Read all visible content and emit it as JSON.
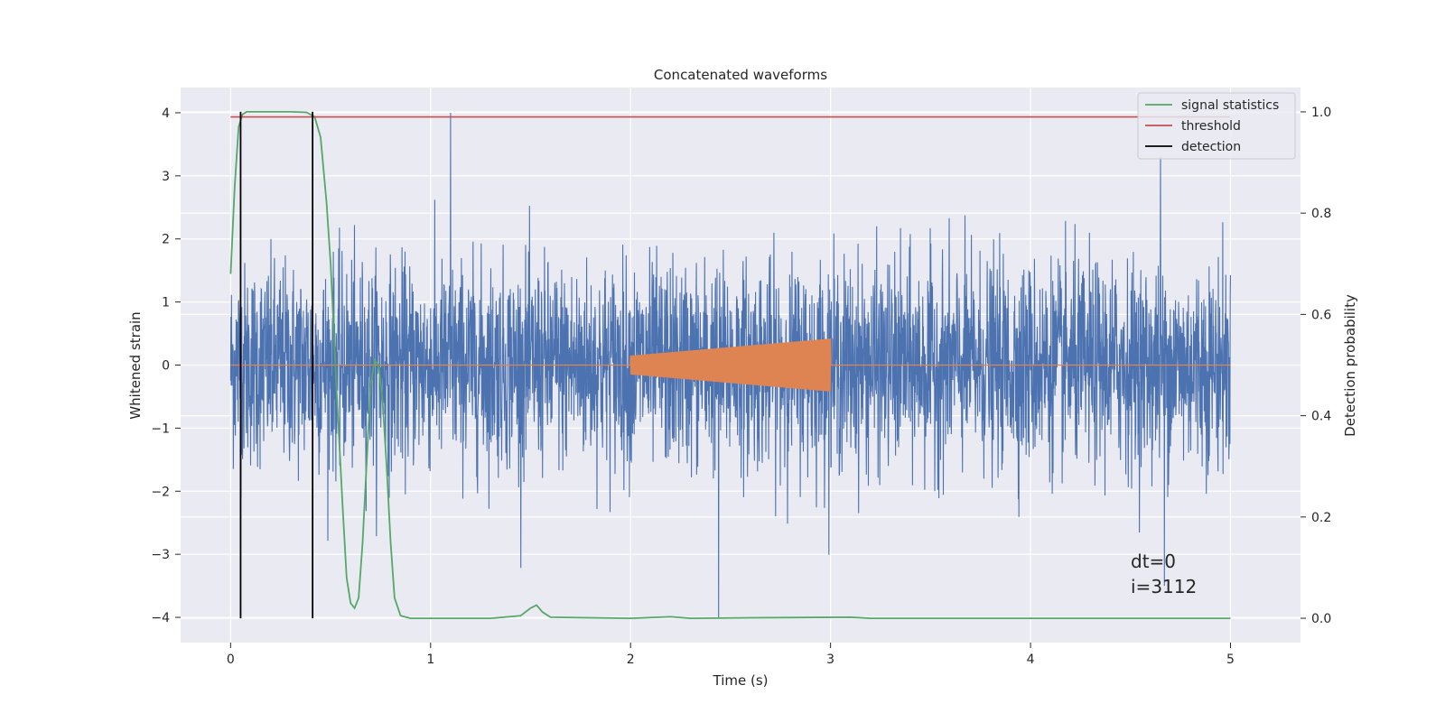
{
  "chart_data": {
    "type": "line",
    "title": "Concatenated waveforms",
    "xlabel": "Time (s)",
    "ylabel": "Whitened strain",
    "y2label": "Detection probability",
    "xlim": [
      -0.25,
      5.35
    ],
    "ylim": [
      -4.4,
      4.4
    ],
    "y2lim": [
      -0.048,
      1.048
    ],
    "xticks": [
      0,
      1,
      2,
      3,
      4,
      5
    ],
    "yticks": [
      -4,
      -3,
      -2,
      -1,
      0,
      1,
      2,
      3,
      4
    ],
    "y2ticks": [
      0.0,
      0.2,
      0.4,
      0.6,
      0.8,
      1.0
    ],
    "xtick_labels": [
      "0",
      "1",
      "2",
      "3",
      "4",
      "5"
    ],
    "ytick_labels": [
      "−4",
      "−3",
      "−2",
      "−1",
      "0",
      "1",
      "2",
      "3",
      "4"
    ],
    "y2tick_labels": [
      "0.0",
      "0.2",
      "0.4",
      "0.6",
      "0.8",
      "1.0"
    ],
    "grid": true,
    "legend_position": "top-right",
    "legend": [
      {
        "name": "signal statistics",
        "color": "#55a868"
      },
      {
        "name": "threshold",
        "color": "#c44e52"
      },
      {
        "name": "detection",
        "color": "#000000"
      }
    ],
    "series": [
      {
        "role": "strain",
        "axis": "left",
        "color": "#4c72b0",
        "x_range": [
          0,
          5
        ],
        "noise_sigma": 0.8,
        "spikes": [
          {
            "x": 1.1,
            "y": 4.0
          },
          {
            "x": 2.44,
            "y": -4.0
          },
          {
            "x": 4.65,
            "y": 3.3
          },
          {
            "x": 4.67,
            "y": -3.5
          }
        ]
      },
      {
        "role": "injected-signal",
        "axis": "left",
        "color": "#dd8452",
        "x_range": [
          2.0,
          3.0
        ],
        "amplitude_start": 0.15,
        "amplitude_end": 0.42
      },
      {
        "name": "signal statistics",
        "axis": "right",
        "color": "#55a868",
        "x": [
          0.0,
          0.02,
          0.04,
          0.06,
          0.08,
          0.1,
          0.2,
          0.3,
          0.38,
          0.42,
          0.45,
          0.48,
          0.5,
          0.53,
          0.56,
          0.58,
          0.6,
          0.62,
          0.64,
          0.66,
          0.7,
          0.72,
          0.74,
          0.76,
          0.78,
          0.8,
          0.82,
          0.85,
          0.9,
          1.0,
          1.3,
          1.45,
          1.5,
          1.53,
          1.56,
          1.6,
          2.0,
          2.2,
          2.3,
          2.6,
          3.1,
          3.2,
          5.0
        ],
        "y": [
          0.68,
          0.85,
          0.97,
          0.995,
          1.0,
          1.0,
          1.0,
          1.0,
          0.999,
          0.99,
          0.95,
          0.82,
          0.7,
          0.45,
          0.22,
          0.08,
          0.03,
          0.02,
          0.04,
          0.15,
          0.46,
          0.51,
          0.5,
          0.43,
          0.3,
          0.15,
          0.04,
          0.005,
          0.0,
          0.0,
          0.0,
          0.005,
          0.02,
          0.026,
          0.012,
          0.002,
          0.0,
          0.003,
          0.0,
          0.001,
          0.002,
          0.0,
          0.0
        ]
      },
      {
        "name": "threshold",
        "axis": "right",
        "color": "#c44e52",
        "x": [
          0,
          5
        ],
        "y": [
          0.99,
          0.99
        ]
      },
      {
        "name": "detection",
        "axis": "right",
        "color": "#000000",
        "x_positions": [
          0.05,
          0.41
        ],
        "y_range": [
          0.0,
          1.0
        ]
      }
    ],
    "annotations": [
      "dt=0",
      "i=3112"
    ]
  }
}
